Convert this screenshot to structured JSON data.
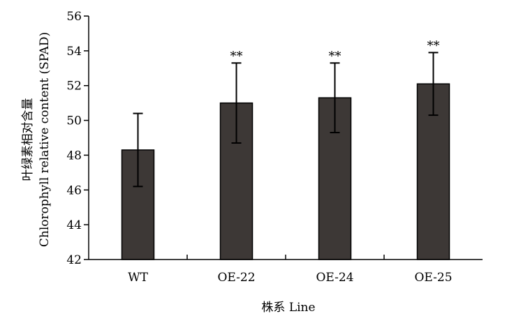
{
  "chart_data": {
    "type": "bar",
    "categories": [
      "WT",
      "OE-22",
      "OE-24",
      "OE-25"
    ],
    "series": [
      {
        "values": [
          48.3,
          51.0,
          51.3,
          52.1
        ],
        "error": [
          2.1,
          2.3,
          2.0,
          1.8
        ],
        "significance": [
          "",
          "**",
          "**",
          "**"
        ]
      }
    ],
    "xlabel": "株系 Line",
    "ylabel_cn": "叶绿素相对含量",
    "ylabel_en": "Chlorophyll  relative content (SPAD)",
    "ylim": [
      42,
      56
    ],
    "yticks": [
      42,
      44,
      46,
      48,
      50,
      52,
      54,
      56
    ],
    "grid": false,
    "legend": "none",
    "colors": {
      "bar": "#3d3836",
      "axis": "#000000"
    }
  }
}
